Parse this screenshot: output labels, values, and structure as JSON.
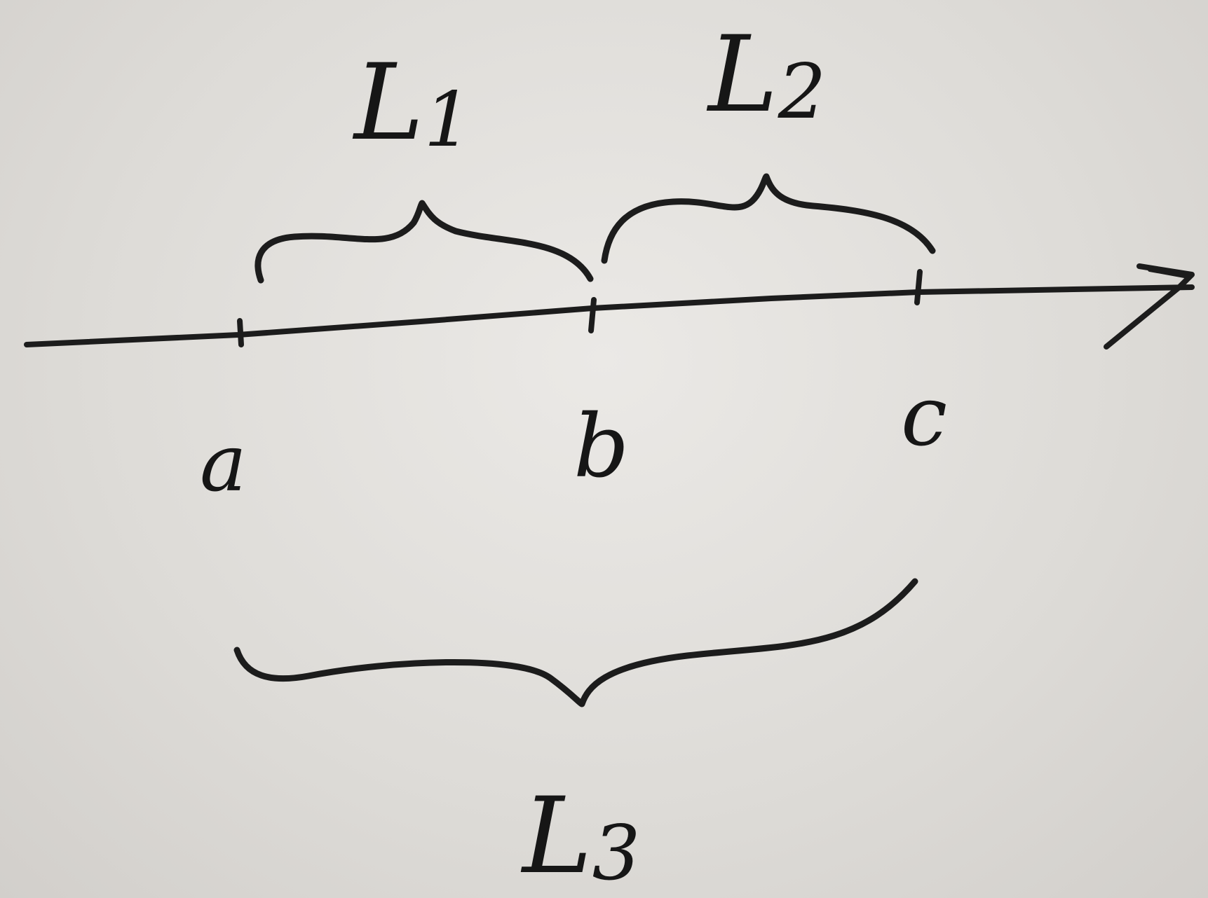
{
  "diagram": {
    "axis": {
      "points": [
        {
          "label": "a"
        },
        {
          "label": "b"
        },
        {
          "label": "c"
        }
      ]
    },
    "spans": [
      {
        "letter": "L",
        "subscript": "1",
        "from": "a",
        "to": "b"
      },
      {
        "letter": "L",
        "subscript": "2",
        "from": "b",
        "to": "c"
      },
      {
        "letter": "L",
        "subscript": "3",
        "from": "a",
        "to": "c"
      }
    ]
  }
}
